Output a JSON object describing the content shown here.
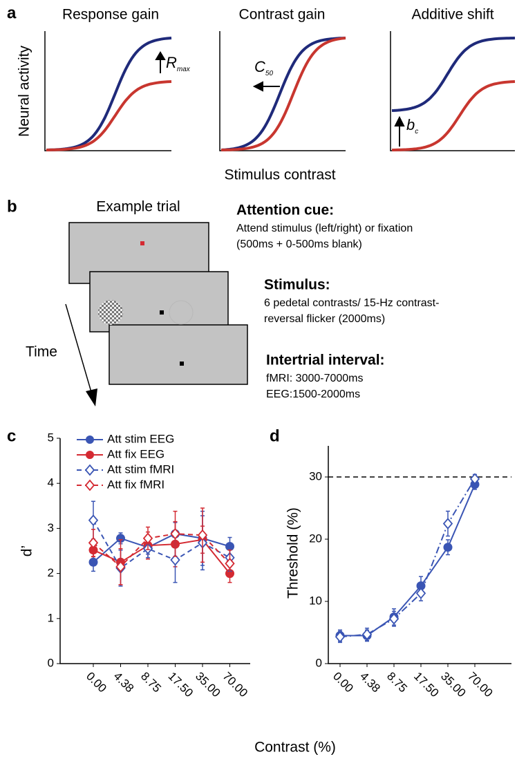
{
  "panel_labels": [
    "a",
    "b",
    "c",
    "d"
  ],
  "schematic": {
    "titles": [
      "Response gain",
      "Contrast gain",
      "Additive shift"
    ],
    "ylabel": "Neural activity",
    "xlabel": "Stimulus contrast",
    "annotations": [
      {
        "symbol": "R",
        "subscript": "max"
      },
      {
        "symbol": "C",
        "subscript": "50"
      },
      {
        "symbol": "b",
        "subscript": "c"
      }
    ]
  },
  "trial": {
    "title": "Example trial",
    "time_label": "Time",
    "steps": [
      {
        "title": "Attention cue:",
        "lines": [
          "Attend stimulus (left/right) or fixation",
          "(500ms + 0-500ms blank)"
        ]
      },
      {
        "title": "Stimulus:",
        "lines": [
          "6 pedetal contrasts/ 15-Hz contrast-",
          "reversal flicker (2000ms)"
        ]
      },
      {
        "title": "Intertrial interval:",
        "lines": [
          "fMRI: 3000-7000ms",
          "EEG:1500-2000ms"
        ]
      }
    ]
  },
  "shared_xlabel": "Contrast (%)",
  "chart_data": [
    {
      "type": "line",
      "ylabel": "d’",
      "categories": [
        "0.00",
        "4.38",
        "8.75",
        "17.50",
        "35.00",
        "70.00"
      ],
      "ylim": [
        0,
        5
      ],
      "yticks": [
        0,
        1,
        2,
        3,
        4,
        5
      ],
      "legend": "upper left",
      "series": [
        {
          "name": "Att stim EEG",
          "color": "#3a55b4",
          "marker": "circle",
          "linestyle": "solid",
          "values": [
            2.25,
            2.78,
            2.58,
            2.88,
            2.78,
            2.6
          ],
          "errors": [
            0.2,
            0.12,
            0.15,
            0.25,
            0.6,
            0.2
          ]
        },
        {
          "name": "Att fix EEG",
          "color": "#d42a32",
          "marker": "circle",
          "linestyle": "solid",
          "values": [
            2.52,
            2.25,
            2.62,
            2.65,
            2.75,
            2.0
          ],
          "errors": [
            0.15,
            0.5,
            0.3,
            0.5,
            0.3,
            0.2
          ]
        },
        {
          "name": "Att stim fMRI",
          "color": "#3a55b4",
          "marker": "diamond",
          "linestyle": "dashed",
          "values": [
            3.18,
            2.12,
            2.55,
            2.3,
            2.68,
            2.35
          ],
          "errors": [
            0.42,
            0.4,
            0.2,
            0.5,
            0.6,
            0.3
          ]
        },
        {
          "name": "Att fix fMRI",
          "color": "#d42a32",
          "marker": "diamond",
          "linestyle": "dashed",
          "values": [
            2.68,
            2.15,
            2.78,
            2.88,
            2.85,
            2.22
          ],
          "errors": [
            0.3,
            0.4,
            0.25,
            0.5,
            0.6,
            0.3
          ]
        }
      ]
    },
    {
      "type": "line",
      "ylabel": "Threshold (%)",
      "categories": [
        "0.00",
        "4.38",
        "8.75",
        "17.50",
        "35.00",
        "70.00"
      ],
      "ylim": [
        0,
        35
      ],
      "yticks": [
        0,
        10,
        20,
        30
      ],
      "reference_line": 30,
      "series": [
        {
          "color": "#3a55b4",
          "marker": "circle",
          "linestyle": "solid",
          "values": [
            4.5,
            4.5,
            7.5,
            12.5,
            18.7,
            28.8
          ],
          "errors": [
            0.9,
            0.9,
            1.3,
            1.5,
            1.2,
            0.8
          ]
        },
        {
          "color": "#3a55b4",
          "marker": "diamond",
          "linestyle": "dashdot",
          "values": [
            4.3,
            4.7,
            7.2,
            11.3,
            22.5,
            29.7
          ],
          "errors": [
            0.9,
            1.0,
            1.2,
            1.2,
            2.0,
            0.7
          ]
        }
      ]
    }
  ]
}
